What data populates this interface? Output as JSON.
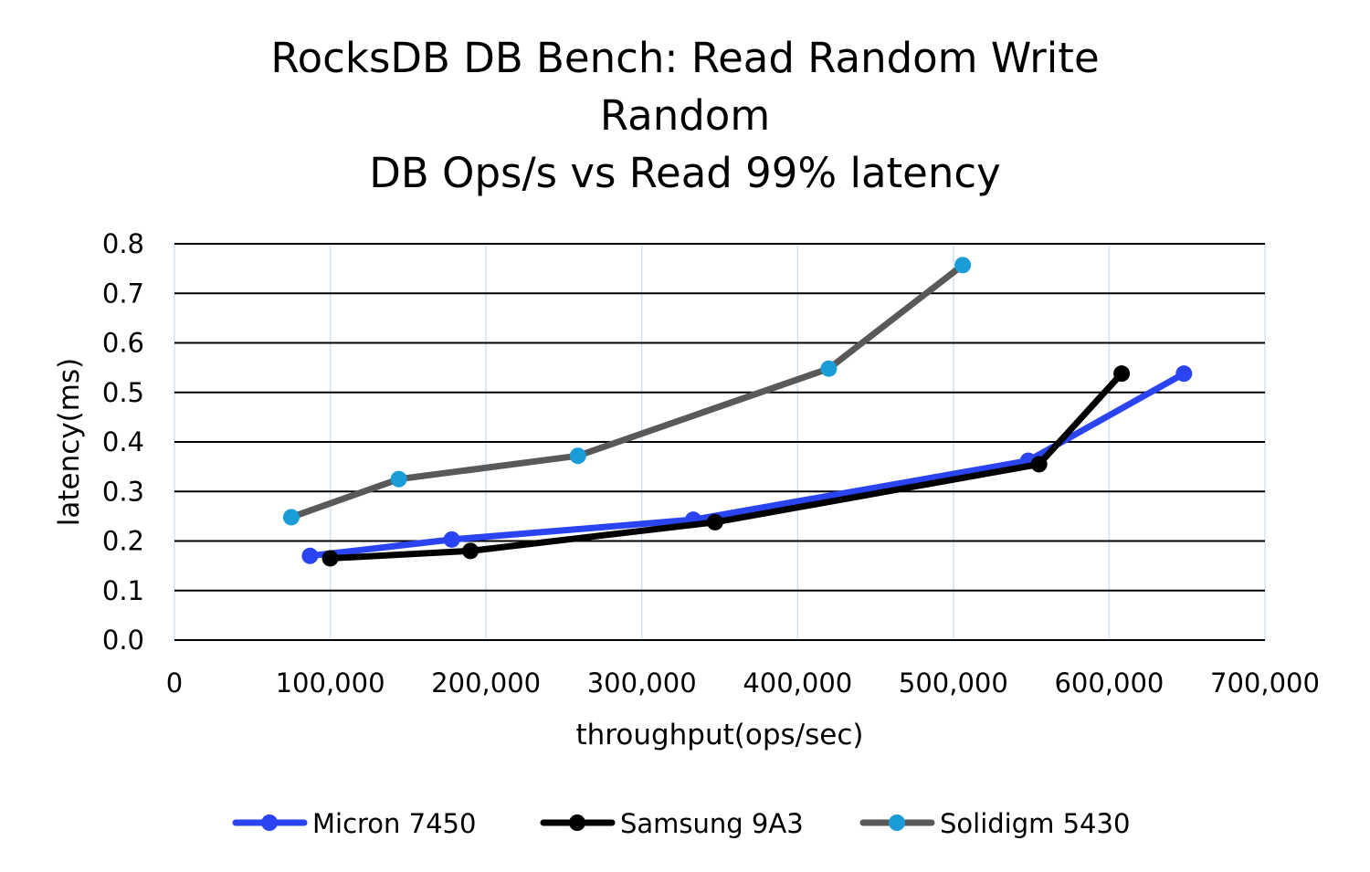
{
  "chart_data": {
    "type": "line",
    "title_lines": [
      "RocksDB DB Bench: Read Random Write",
      "Random",
      "DB Ops/s vs Read 99% latency"
    ],
    "xlabel": "throughput(ops/sec)",
    "ylabel": "latency(ms)",
    "xlim": [
      0,
      700000
    ],
    "ylim": [
      0,
      0.8
    ],
    "x_ticks": [
      "0",
      "100,000",
      "200,000",
      "300,000",
      "400,000",
      "500,000",
      "600,000",
      "700,000"
    ],
    "x_tick_values": [
      0,
      100000,
      200000,
      300000,
      400000,
      500000,
      600000,
      700000
    ],
    "y_ticks": [
      "0.0",
      "0.1",
      "0.2",
      "0.3",
      "0.4",
      "0.5",
      "0.6",
      "0.7",
      "0.8"
    ],
    "y_tick_values": [
      0,
      0.1,
      0.2,
      0.3,
      0.4,
      0.5,
      0.6,
      0.7,
      0.8
    ],
    "grid": true,
    "legend_position": "bottom",
    "series": [
      {
        "name": "Micron 7450",
        "line_color": "#2b44f2",
        "marker_color": "#2b44f2",
        "points": [
          [
            87000,
            0.17
          ],
          [
            178000,
            0.203
          ],
          [
            333000,
            0.243
          ],
          [
            548000,
            0.362
          ],
          [
            648000,
            0.538
          ]
        ]
      },
      {
        "name": "Samsung 9A3",
        "line_color": "#000000",
        "marker_color": "#000000",
        "points": [
          [
            100000,
            0.165
          ],
          [
            190000,
            0.18
          ],
          [
            347000,
            0.238
          ],
          [
            555000,
            0.355
          ],
          [
            608000,
            0.538
          ]
        ]
      },
      {
        "name": "Solidigm 5430",
        "line_color": "#595959",
        "marker_color": "#1a9cd8",
        "points": [
          [
            75000,
            0.248
          ],
          [
            144000,
            0.325
          ],
          [
            259000,
            0.372
          ],
          [
            420000,
            0.548
          ],
          [
            506000,
            0.757
          ]
        ]
      }
    ]
  }
}
